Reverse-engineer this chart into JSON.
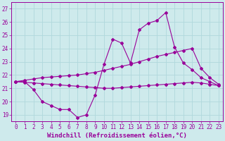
{
  "title": "",
  "xlabel": "Windchill (Refroidissement éolien,°C)",
  "ylabel": "",
  "xlim": [
    -0.5,
    23.5
  ],
  "ylim": [
    18.5,
    27.5
  ],
  "yticks": [
    19,
    20,
    21,
    22,
    23,
    24,
    25,
    26,
    27
  ],
  "xticks": [
    0,
    1,
    2,
    3,
    4,
    5,
    6,
    7,
    8,
    9,
    10,
    11,
    12,
    13,
    14,
    15,
    16,
    17,
    18,
    19,
    20,
    21,
    22,
    23
  ],
  "background_color": "#ceeaec",
  "grid_color": "#b0d8dc",
  "line_color": "#990099",
  "line1_x": [
    0,
    1,
    2,
    3,
    4,
    5,
    6,
    7,
    8,
    9,
    10,
    11,
    12,
    13,
    14,
    15,
    16,
    17,
    18,
    19,
    20,
    21,
    22,
    23
  ],
  "line1_y": [
    21.5,
    21.5,
    20.9,
    20.0,
    19.7,
    19.4,
    19.4,
    18.8,
    19.0,
    20.5,
    22.8,
    24.7,
    24.4,
    22.9,
    25.4,
    25.9,
    26.1,
    26.7,
    24.1,
    22.9,
    22.4,
    21.8,
    21.5,
    21.2
  ],
  "line2_x": [
    0,
    1,
    2,
    3,
    4,
    5,
    6,
    7,
    8,
    9,
    10,
    11,
    12,
    13,
    14,
    15,
    16,
    17,
    18,
    19,
    20,
    21,
    22,
    23
  ],
  "line2_y": [
    21.5,
    21.6,
    21.7,
    21.8,
    21.85,
    21.9,
    21.95,
    22.0,
    22.1,
    22.2,
    22.35,
    22.5,
    22.65,
    22.8,
    23.0,
    23.2,
    23.4,
    23.55,
    23.7,
    23.85,
    24.0,
    22.5,
    21.8,
    21.3
  ],
  "line3_x": [
    0,
    1,
    2,
    3,
    4,
    5,
    6,
    7,
    8,
    9,
    10,
    11,
    12,
    13,
    14,
    15,
    16,
    17,
    18,
    19,
    20,
    21,
    22,
    23
  ],
  "line3_y": [
    21.5,
    21.45,
    21.4,
    21.35,
    21.3,
    21.25,
    21.2,
    21.15,
    21.1,
    21.05,
    21.0,
    21.0,
    21.05,
    21.1,
    21.15,
    21.2,
    21.25,
    21.3,
    21.35,
    21.4,
    21.45,
    21.4,
    21.3,
    21.2
  ],
  "tick_fontsize": 5.5,
  "xlabel_fontsize": 6.5,
  "marker": "D",
  "marker_size": 2.0,
  "line_width": 0.8
}
